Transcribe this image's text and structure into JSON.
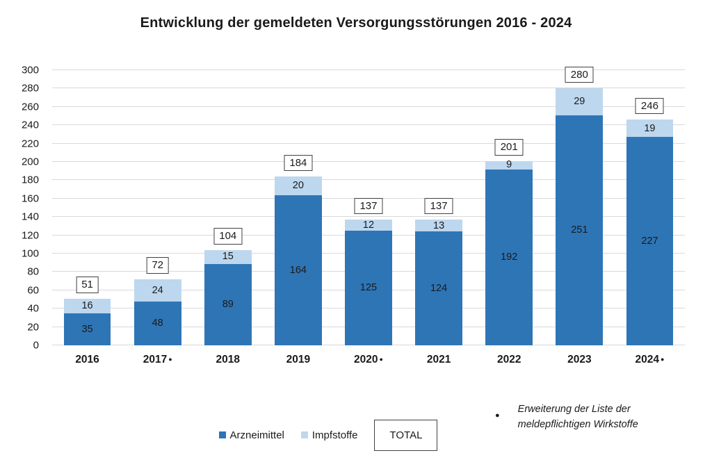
{
  "title": "Entwicklung der gemeldeten Versorgungsstörungen 2016 - 2024",
  "chart_data": {
    "type": "bar",
    "stacked": true,
    "title": "Entwicklung der gemeldeten Versorgungsstörungen 2016 - 2024",
    "categories": [
      "2016",
      "2017",
      "2018",
      "2019",
      "2020",
      "2021",
      "2022",
      "2023",
      "2024"
    ],
    "marked_categories": [
      "2017",
      "2020",
      "2024"
    ],
    "series": [
      {
        "name": "Arzneimittel",
        "color": "#2E75B6",
        "values": [
          35,
          48,
          89,
          164,
          125,
          124,
          192,
          251,
          227
        ]
      },
      {
        "name": "Impfstoffe",
        "color": "#BDD7EE",
        "values": [
          16,
          24,
          15,
          20,
          12,
          13,
          9,
          29,
          19
        ]
      }
    ],
    "totals": [
      51,
      72,
      104,
      184,
      137,
      137,
      201,
      280,
      246
    ],
    "xlabel": "",
    "ylabel": "",
    "ylim": [
      0,
      300
    ],
    "ytick_step": 20,
    "grid": true,
    "legend_position": "bottom"
  },
  "legend": {
    "items": [
      {
        "label": "Arzneimittel",
        "color": "#2E75B6"
      },
      {
        "label": "Impfstoffe",
        "color": "#BDD7EE"
      }
    ],
    "total_label": "TOTAL"
  },
  "footnote": {
    "bullet": "●",
    "text": "Erweiterung der Liste der meldepflichtigen Wirkstoffe"
  },
  "colors": {
    "bar_dark": "#2E75B6",
    "bar_light": "#BDD7EE",
    "gridline": "#D9D9D9",
    "box_border": "#404040",
    "text": "#1a1a1a"
  }
}
